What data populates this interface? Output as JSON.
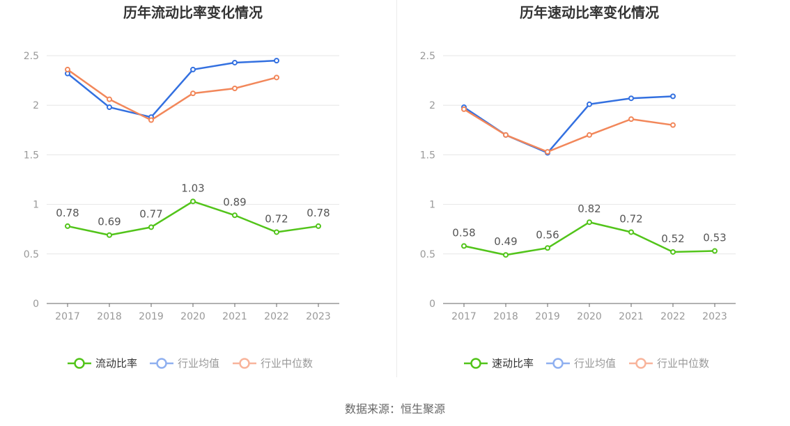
{
  "source_label": "数据来源：恒生聚源",
  "colors": {
    "company": "#52c41a",
    "industry_avg": "#3370e0",
    "industry_median": "#f2875a",
    "legend_avg": "#8fb0f0",
    "legend_median": "#f8b49b",
    "grid": "#e6e6e6",
    "axis": "#666666",
    "tick_text": "#999999",
    "title": "#333333",
    "label_text": "#555555"
  },
  "chart_data": [
    {
      "type": "line",
      "title": "历年流动比率变化情况",
      "categories": [
        "2017",
        "2018",
        "2019",
        "2020",
        "2021",
        "2022",
        "2023"
      ],
      "ylim": [
        0,
        2.5
      ],
      "yticks": [
        "0",
        "0.5",
        "1",
        "1.5",
        "2",
        "2.5"
      ],
      "grid": true,
      "legend_position": "bottom",
      "series": [
        {
          "name": "流动比率",
          "values": [
            0.78,
            0.69,
            0.77,
            1.03,
            0.89,
            0.72,
            0.78
          ],
          "labels": [
            "0.78",
            "0.69",
            "0.77",
            "1.03",
            "0.89",
            "0.72",
            "0.78"
          ]
        },
        {
          "name": "行业均值",
          "values": [
            2.32,
            1.98,
            1.88,
            2.36,
            2.43,
            2.45,
            null
          ]
        },
        {
          "name": "行业中位数",
          "values": [
            2.36,
            2.06,
            1.85,
            2.12,
            2.17,
            2.28,
            null
          ]
        }
      ]
    },
    {
      "type": "line",
      "title": "历年速动比率变化情况",
      "categories": [
        "2017",
        "2018",
        "2019",
        "2020",
        "2021",
        "2022",
        "2023"
      ],
      "ylim": [
        0,
        2.5
      ],
      "yticks": [
        "0",
        "0.5",
        "1",
        "1.5",
        "2",
        "2.5"
      ],
      "grid": true,
      "legend_position": "bottom",
      "series": [
        {
          "name": "速动比率",
          "values": [
            0.58,
            0.49,
            0.56,
            0.82,
            0.72,
            0.52,
            0.53
          ],
          "labels": [
            "0.58",
            "0.49",
            "0.56",
            "0.82",
            "0.72",
            "0.52",
            "0.53"
          ]
        },
        {
          "name": "行业均值",
          "values": [
            1.98,
            1.7,
            1.52,
            2.01,
            2.07,
            2.09,
            null
          ]
        },
        {
          "name": "行业中位数",
          "values": [
            1.96,
            1.7,
            1.53,
            1.7,
            1.86,
            1.8,
            null
          ]
        }
      ]
    }
  ]
}
